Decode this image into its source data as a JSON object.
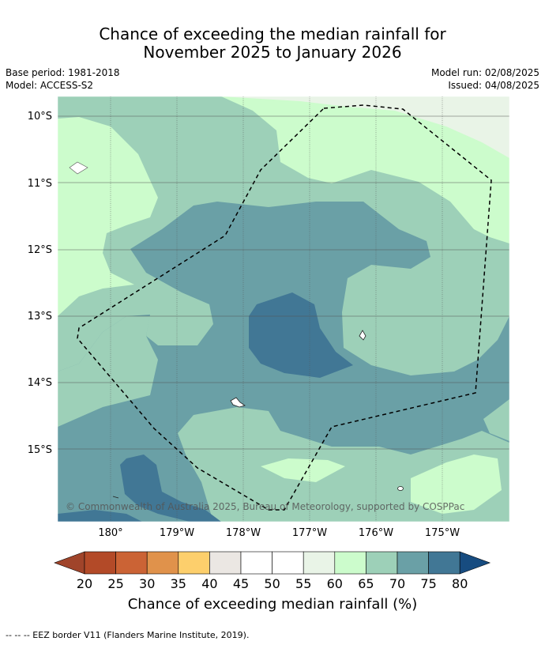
{
  "title_line1": "Chance of exceeding the median rainfall for",
  "title_line2": "November 2025 to January 2026",
  "base_period": "Base period: 1981-2018",
  "model": "Model: ACCESS-S2",
  "model_run": "Model run: 02/08/2025",
  "issued": "Issued: 04/08/2025",
  "lat_labels": [
    "10°S",
    "11°S",
    "12°S",
    "13°S",
    "14°S",
    "15°S"
  ],
  "lon_labels": [
    "180°",
    "179°W",
    "178°W",
    "177°W",
    "176°W",
    "175°W"
  ],
  "copyright": "© Commonwealth of Australia 2025, Bureau of Meteorology, supported by COSPPac",
  "colorbar": {
    "ticks": [
      "20",
      "25",
      "30",
      "35",
      "40",
      "45",
      "50",
      "55",
      "60",
      "65",
      "70",
      "75",
      "80"
    ],
    "colors": [
      "#a0442a",
      "#b34a28",
      "#cb6335",
      "#e0924b",
      "#fdcf6c",
      "#ebe7e3",
      "#ffffff",
      "#ffffff",
      "#e9f4e7",
      "#ccfccc",
      "#9dd0b8",
      "#6aa0a6",
      "#417795",
      "#174c80"
    ],
    "label": "Chance of exceeding median rainfall (%)"
  },
  "legend_text": "-- -- -- EEZ border V11 (Flanders Marine Institute, 2019).",
  "colors": {
    "c55_60": "#e9f4e7",
    "c60_65": "#ccfccc",
    "c65_70": "#9dd0b8",
    "c70_75": "#6aa0a6",
    "c75_80": "#417795"
  }
}
